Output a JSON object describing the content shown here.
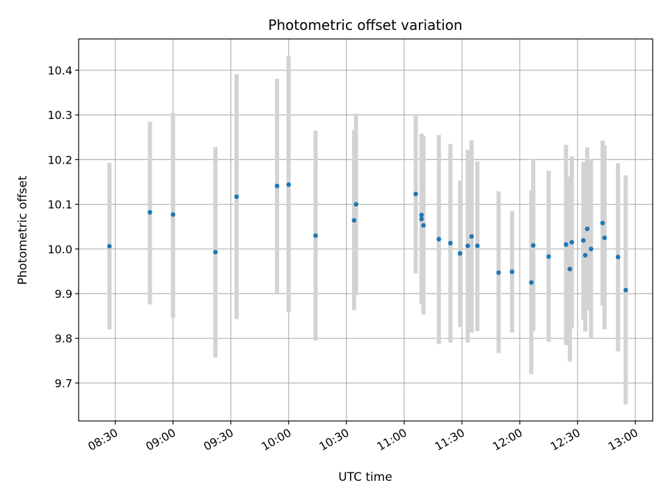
{
  "chart_data": {
    "type": "scatter",
    "title": "Photometric offset variation",
    "xlabel": "UTC time",
    "ylabel": "Photometric offset",
    "xlim": [
      "08:11",
      "13:09"
    ],
    "ylim": [
      9.615,
      10.47
    ],
    "grid": true,
    "x_ticks": [
      "08:30",
      "09:00",
      "09:30",
      "10:00",
      "10:30",
      "11:00",
      "11:30",
      "12:00",
      "12:30",
      "13:00"
    ],
    "y_ticks": [
      "9.7",
      "9.8",
      "9.9",
      "10.0",
      "10.1",
      "10.2",
      "10.3",
      "10.4"
    ],
    "colors": {
      "points": "#1f77b4",
      "error_bars": "#d3d3d3",
      "grid": "#b0b0b0"
    },
    "series": [
      {
        "points": [
          {
            "x": "08:27",
            "y": 10.006,
            "err_low": 9.82,
            "err_high": 10.193
          },
          {
            "x": "08:48",
            "y": 10.082,
            "err_low": 9.876,
            "err_high": 10.285
          },
          {
            "x": "09:00",
            "y": 10.077,
            "err_low": 9.846,
            "err_high": 10.305
          },
          {
            "x": "09:22",
            "y": 9.993,
            "err_low": 9.757,
            "err_high": 10.228
          },
          {
            "x": "09:33",
            "y": 10.117,
            "err_low": 9.843,
            "err_high": 10.391
          },
          {
            "x": "09:54",
            "y": 10.141,
            "err_low": 9.9,
            "err_high": 10.381
          },
          {
            "x": "10:00",
            "y": 10.144,
            "err_low": 9.858,
            "err_high": 10.431
          },
          {
            "x": "10:14",
            "y": 10.03,
            "err_low": 9.795,
            "err_high": 10.265
          },
          {
            "x": "10:34",
            "y": 10.064,
            "err_low": 9.863,
            "err_high": 10.266
          },
          {
            "x": "10:35",
            "y": 10.1,
            "err_low": 9.897,
            "err_high": 10.303
          },
          {
            "x": "11:06",
            "y": 10.123,
            "err_low": 9.945,
            "err_high": 10.302
          },
          {
            "x": "11:09",
            "y": 10.076,
            "err_low": 9.895,
            "err_high": 10.258
          },
          {
            "x": "11:09",
            "y": 10.067,
            "err_low": 9.876,
            "err_high": 10.258
          },
          {
            "x": "11:10",
            "y": 10.053,
            "err_low": 9.853,
            "err_high": 10.253
          },
          {
            "x": "11:18",
            "y": 10.022,
            "err_low": 9.787,
            "err_high": 10.255
          },
          {
            "x": "11:24",
            "y": 10.013,
            "err_low": 9.79,
            "err_high": 10.235
          },
          {
            "x": "11:29",
            "y": 9.99,
            "err_low": 9.825,
            "err_high": 10.153
          },
          {
            "x": "11:33",
            "y": 10.007,
            "err_low": 9.79,
            "err_high": 10.222
          },
          {
            "x": "11:35",
            "y": 10.028,
            "err_low": 9.813,
            "err_high": 10.243
          },
          {
            "x": "11:38",
            "y": 10.007,
            "err_low": 9.816,
            "err_high": 10.196
          },
          {
            "x": "11:49",
            "y": 9.947,
            "err_low": 9.767,
            "err_high": 10.129
          },
          {
            "x": "11:56",
            "y": 9.949,
            "err_low": 9.813,
            "err_high": 10.085
          },
          {
            "x": "12:06",
            "y": 9.925,
            "err_low": 9.72,
            "err_high": 10.131
          },
          {
            "x": "12:07",
            "y": 10.008,
            "err_low": 9.816,
            "err_high": 10.2
          },
          {
            "x": "12:15",
            "y": 9.983,
            "err_low": 9.792,
            "err_high": 10.175
          },
          {
            "x": "12:24",
            "y": 10.01,
            "err_low": 9.785,
            "err_high": 10.233
          },
          {
            "x": "12:26",
            "y": 9.955,
            "err_low": 9.748,
            "err_high": 10.162
          },
          {
            "x": "12:27",
            "y": 10.015,
            "err_low": 9.822,
            "err_high": 10.207
          },
          {
            "x": "12:33",
            "y": 10.019,
            "err_low": 9.842,
            "err_high": 10.195
          },
          {
            "x": "12:34",
            "y": 9.986,
            "err_low": 9.815,
            "err_high": 10.157
          },
          {
            "x": "12:35",
            "y": 10.045,
            "err_low": 9.863,
            "err_high": 10.227
          },
          {
            "x": "12:37",
            "y": 10.0,
            "err_low": 9.8,
            "err_high": 10.2
          },
          {
            "x": "12:43",
            "y": 10.058,
            "err_low": 9.873,
            "err_high": 10.243
          },
          {
            "x": "12:44",
            "y": 10.025,
            "err_low": 9.82,
            "err_high": 10.232
          },
          {
            "x": "12:51",
            "y": 9.982,
            "err_low": 9.771,
            "err_high": 10.192
          },
          {
            "x": "12:55",
            "y": 9.908,
            "err_low": 9.652,
            "err_high": 10.165
          }
        ]
      }
    ]
  }
}
